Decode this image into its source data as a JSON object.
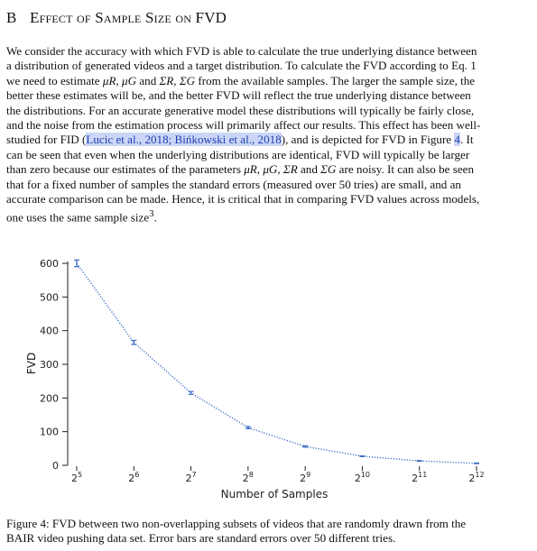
{
  "section": {
    "number": "B",
    "title": "Effect of Sample Size on FVD"
  },
  "body": {
    "l1": "We consider the accuracy with which FVD is able to calculate the true underlying distance between",
    "l2": "a distribution of generated videos and a target distribution. To calculate the FVD according to Eq. 1",
    "l3a": "we need to estimate ",
    "l3_mu": "μR, μG",
    "l3b": " and ",
    "l3_sig": "ΣR, ΣG",
    "l3c": " from the available samples. The larger the sample size, the",
    "l4": "better these estimates will be, and the better FVD will reflect the true underlying distance between",
    "l5": "the distributions. For an accurate generative model these distributions will typically be fairly close,",
    "l6": "and the noise from the estimation process will primarily affect our results. This effect has been well-",
    "l7a": "studied for FID (",
    "l7_cite": "Lucic et al., 2018; Bińkowski et al., 2018",
    "l7b": "), and is depicted for FVD in Figure ",
    "l7_fig": "4",
    "l7c": ". It",
    "l8": "can be seen that even when the underlying distributions are identical, FVD will typically be larger",
    "l9a": "than zero because our estimates of the parameters ",
    "l9_params": "μR, μG, ΣR",
    "l9b": " and ",
    "l9_sg": "ΣG",
    "l9c": " are noisy. It can also be seen",
    "l10": "that for a fixed number of samples the standard errors (measured over 50 tries) are small, and an",
    "l11": "accurate comparison can be made. Hence, it is critical that in comparing FVD values across models,",
    "l12a": "one uses the same sample size",
    "l12_fn": "3",
    "l12b": "."
  },
  "chart_data": {
    "type": "line",
    "xlabel": "Number of Samples",
    "ylabel": "FVD",
    "x_scale": "log2",
    "x": [
      32,
      64,
      128,
      256,
      512,
      1024,
      2048,
      4096
    ],
    "x_tick_base": "2",
    "x_tick_exponents": [
      "5",
      "6",
      "7",
      "8",
      "9",
      "10",
      "11",
      "12"
    ],
    "y_ticks": [
      "0",
      "100",
      "200",
      "300",
      "400",
      "500",
      "600"
    ],
    "ylim": [
      0,
      600
    ],
    "series": [
      {
        "values": [
          600,
          365,
          215,
          112,
          56,
          27,
          13,
          6
        ],
        "error": [
          10,
          6,
          4,
          3,
          2,
          1,
          1,
          1
        ]
      }
    ],
    "line_style": "dotted",
    "color": "#3a6cc4",
    "grid": false
  },
  "caption": {
    "l1": "Figure 4: FVD between two non-overlapping subsets of videos that are randomly drawn from the",
    "l2": "BAIR video pushing data set. Error bars are standard errors over 50 different tries."
  }
}
